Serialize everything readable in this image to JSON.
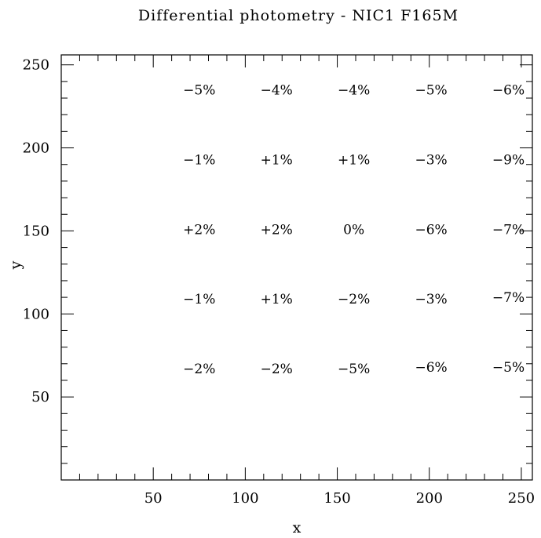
{
  "chart_data": {
    "type": "table",
    "title": "Differential photometry - NIC1 F165M",
    "xlabel": "x",
    "ylabel": "y",
    "xlim": [
      0,
      256
    ],
    "ylim": [
      0,
      256
    ],
    "x_ticks": [
      50,
      100,
      150,
      200,
      250
    ],
    "y_ticks": [
      50,
      100,
      150,
      200,
      250
    ],
    "x_minor_step": 10,
    "y_minor_step": 10,
    "grid": false,
    "points": [
      {
        "x": 75,
        "y": 235,
        "label": "−5%"
      },
      {
        "x": 117,
        "y": 235,
        "label": "−4%"
      },
      {
        "x": 159,
        "y": 235,
        "label": "−4%"
      },
      {
        "x": 201,
        "y": 235,
        "label": "−5%"
      },
      {
        "x": 243,
        "y": 235,
        "label": "−6%"
      },
      {
        "x": 75,
        "y": 193,
        "label": "−1%"
      },
      {
        "x": 117,
        "y": 193,
        "label": "+1%"
      },
      {
        "x": 159,
        "y": 193,
        "label": "+1%"
      },
      {
        "x": 201,
        "y": 193,
        "label": "−3%"
      },
      {
        "x": 243,
        "y": 193,
        "label": "−9%"
      },
      {
        "x": 75,
        "y": 151,
        "label": "+2%"
      },
      {
        "x": 117,
        "y": 151,
        "label": "+2%"
      },
      {
        "x": 159,
        "y": 151,
        "label": "0%"
      },
      {
        "x": 201,
        "y": 151,
        "label": "−6%"
      },
      {
        "x": 243,
        "y": 151,
        "label": "−7%"
      },
      {
        "x": 75,
        "y": 109,
        "label": "−1%"
      },
      {
        "x": 117,
        "y": 109,
        "label": "+1%"
      },
      {
        "x": 159,
        "y": 109,
        "label": "−2%"
      },
      {
        "x": 201,
        "y": 109,
        "label": "−3%"
      },
      {
        "x": 243,
        "y": 110,
        "label": "−7%"
      },
      {
        "x": 75,
        "y": 67,
        "label": "−2%"
      },
      {
        "x": 117,
        "y": 67,
        "label": "−2%"
      },
      {
        "x": 159,
        "y": 67,
        "label": "−5%"
      },
      {
        "x": 201,
        "y": 68,
        "label": "−6%"
      },
      {
        "x": 243,
        "y": 68,
        "label": "−5%"
      }
    ]
  }
}
